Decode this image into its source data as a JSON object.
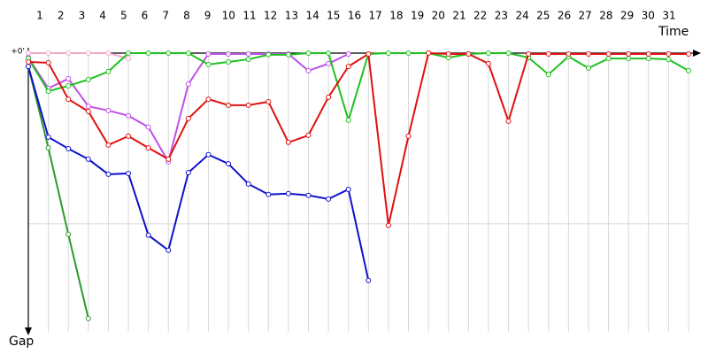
{
  "chart_data": {
    "type": "line",
    "x_label": "Time",
    "y_label": "Gap",
    "lap_labels": [
      1,
      2,
      3,
      4,
      5,
      6,
      7,
      8,
      9,
      10,
      11,
      12,
      13,
      14,
      15,
      16,
      17,
      18,
      19,
      20,
      21,
      22,
      23,
      24,
      25,
      26,
      27,
      28,
      29,
      30,
      31
    ],
    "x": [
      0,
      1,
      2,
      3,
      4,
      5,
      6,
      7,
      8,
      9,
      10,
      11,
      12,
      13,
      14,
      15,
      16,
      17,
      18,
      19,
      20,
      21,
      22,
      23,
      24,
      25,
      26,
      27,
      28,
      29,
      30,
      31,
      32,
      33
    ],
    "xlim": [
      0,
      33
    ],
    "ylim": [
      0,
      98
    ],
    "yticks": [
      {
        "value": 0,
        "label": "+0'"
      }
    ],
    "ygrid": [
      60
    ],
    "series": [
      {
        "color": "#f4a8c8",
        "values": [
          0,
          0,
          0,
          0,
          0,
          1.9,
          null,
          null,
          null,
          null,
          null,
          null,
          null,
          null,
          null,
          null,
          null,
          null,
          null,
          null,
          null,
          null,
          null,
          null,
          null,
          null,
          null,
          null,
          null,
          null,
          null,
          null,
          null,
          null
        ]
      },
      {
        "color": "#2e9a2e",
        "values": [
          4.7,
          33.3,
          63.7,
          93.3,
          null,
          null,
          null,
          null,
          null,
          null,
          null,
          null,
          null,
          null,
          null,
          null,
          null,
          null,
          null,
          null,
          null,
          null,
          null,
          null,
          null,
          null,
          null,
          null,
          null,
          null,
          null,
          null,
          null,
          null
        ]
      },
      {
        "color": "#1010cc",
        "values": [
          4.7,
          29.5,
          33.6,
          37.3,
          42.6,
          42.3,
          64,
          69.3,
          42,
          35.7,
          38.9,
          46,
          49.7,
          49.4,
          50,
          51.3,
          47.9,
          79.9,
          null,
          null,
          null,
          null,
          null,
          null,
          null,
          null,
          null,
          null,
          null,
          null,
          null,
          null,
          null,
          null
        ]
      },
      {
        "color": "#c050e8",
        "values": [
          1.6,
          12.4,
          9,
          18.7,
          20.2,
          22,
          26,
          38.2,
          10.9,
          0.3,
          0.3,
          0.3,
          0.3,
          0.3,
          6.2,
          3.7,
          0.3,
          null,
          null,
          null,
          null,
          null,
          null,
          null,
          null,
          null,
          null,
          null,
          null,
          null,
          null,
          null,
          null,
          null
        ]
      },
      {
        "color": "#20c020",
        "values": [
          1.9,
          13.4,
          11.5,
          9.3,
          6.5,
          0,
          0,
          0,
          0,
          4,
          3.1,
          2.2,
          0.6,
          0.6,
          0,
          0,
          23.6,
          0.3,
          0,
          0,
          0,
          1.6,
          0.3,
          0,
          0,
          1.6,
          7.5,
          1.2,
          5.3,
          1.9,
          1.9,
          1.9,
          2.2,
          6.2
        ]
      },
      {
        "color": "#e01010",
        "values": [
          3.1,
          3.4,
          16.2,
          20.5,
          32.3,
          29.2,
          33.3,
          37.3,
          23,
          16.2,
          18.3,
          18.3,
          17.1,
          31.4,
          28.9,
          15.5,
          4.7,
          0.3,
          60.6,
          29.2,
          0,
          0.3,
          0.3,
          3.7,
          23.9,
          0.3,
          0.3,
          0.3,
          0.3,
          0.3,
          0.3,
          0.3,
          0.3,
          0.3
        ]
      }
    ]
  }
}
